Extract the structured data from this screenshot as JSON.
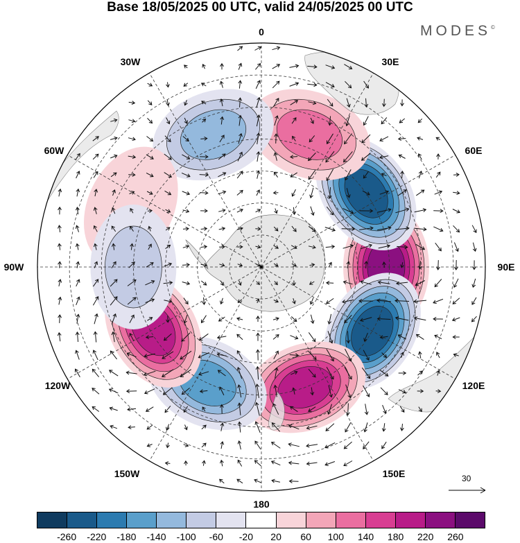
{
  "header": {
    "title": "Base 18/05/2025 00 UTC, valid 24/05/2025 00 UTC",
    "brand": "MODES",
    "brand_mark": "©"
  },
  "map": {
    "projection": "south-polar-stereographic",
    "longitude_labels": {
      "top": "0",
      "bottom": "180",
      "left": "90W",
      "right": "90E",
      "upper_left": "30W",
      "upper_right": "30E",
      "left_upper": "60W",
      "right_upper": "60E",
      "left_lower": "120W",
      "right_lower": "120E",
      "lower_left": "150W",
      "lower_right": "150E"
    },
    "reference_vector": "30",
    "field_centers": [
      {
        "lon": 90,
        "lat": -51,
        "value": 240
      },
      {
        "lon": 55,
        "lat": -50,
        "value": -240
      },
      {
        "lon": 120,
        "lat": -50,
        "value": -240
      },
      {
        "lon": 160,
        "lat": -50,
        "value": 200
      },
      {
        "lon": -155,
        "lat": -50,
        "value": -160
      },
      {
        "lon": -120,
        "lat": -51,
        "value": 200
      },
      {
        "lon": 20,
        "lat": -46,
        "value": 140
      },
      {
        "lon": -20,
        "lat": -46,
        "value": -120
      },
      {
        "lon": -65,
        "lat": -45,
        "value": 60
      },
      {
        "lon": -90,
        "lat": -50,
        "value": -80
      }
    ]
  },
  "colorbar": {
    "ticks": [
      "-260",
      "-220",
      "-180",
      "-140",
      "-100",
      "-60",
      "-20",
      "20",
      "60",
      "100",
      "140",
      "180",
      "220",
      "260"
    ],
    "colors": [
      "#0f3b5f",
      "#1a5a8a",
      "#2c7bb0",
      "#5a9fcb",
      "#94b9dd",
      "#c3cbe4",
      "#e3e3f0",
      "#ffffff",
      "#f8d4d9",
      "#f3a6b8",
      "#ea6ea0",
      "#d83e92",
      "#b81c88",
      "#8b1080",
      "#5b0a6a"
    ]
  }
}
